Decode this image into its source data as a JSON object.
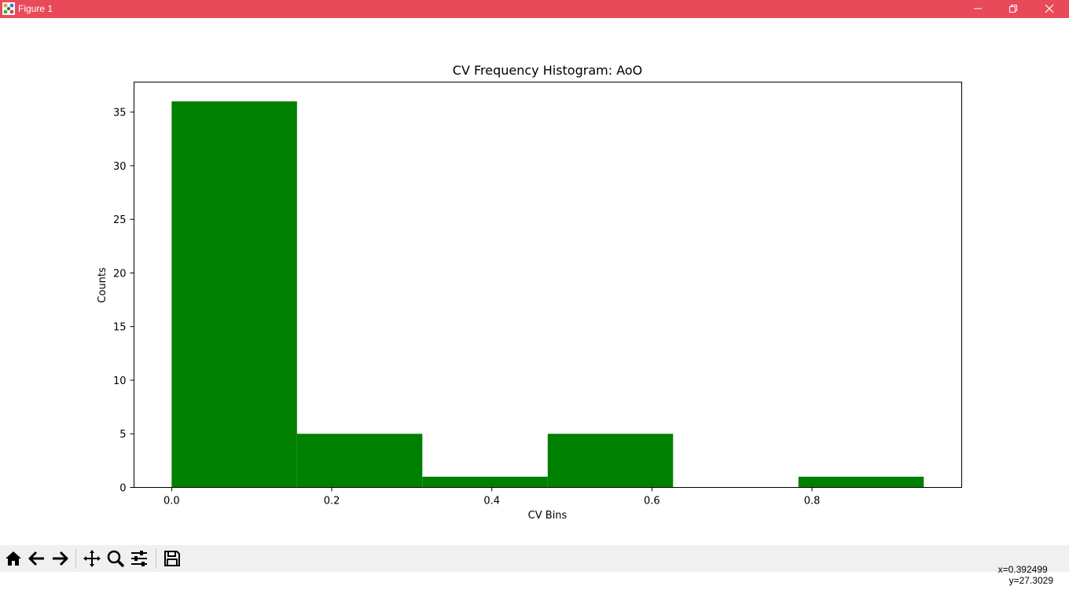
{
  "window": {
    "title": "Figure 1",
    "title_bar_color": "#e84a5a",
    "icons": [
      "app-icon",
      "minimize-icon",
      "restore-icon",
      "close-icon"
    ]
  },
  "toolbar": {
    "buttons": [
      "home-icon",
      "back-icon",
      "forward-icon",
      "pan-icon",
      "zoom-icon",
      "configure-subplots-icon",
      "save-icon"
    ],
    "coord_x": "x=0.392499",
    "coord_y": "y=27.3029"
  },
  "chart_data": {
    "type": "bar",
    "title": "CV Frequency Histogram: AoO",
    "xlabel": "CV Bins",
    "ylabel": "Counts",
    "bin_edges": [
      0.0,
      0.1566,
      0.3132,
      0.4698,
      0.6264,
      0.783,
      0.9396
    ],
    "values": [
      36,
      5,
      1,
      5,
      0,
      1
    ],
    "xticks": [
      0.0,
      0.2,
      0.4,
      0.6,
      0.8
    ],
    "xtick_labels": [
      "0.0",
      "0.2",
      "0.4",
      "0.6",
      "0.8"
    ],
    "yticks": [
      0,
      5,
      10,
      15,
      20,
      25,
      30,
      35
    ],
    "ytick_labels": [
      "0",
      "5",
      "10",
      "15",
      "20",
      "25",
      "30",
      "35"
    ],
    "xlim": [
      -0.047,
      0.987
    ],
    "ylim": [
      0,
      37.8
    ],
    "bar_color": "#008000",
    "grid": false,
    "legend": false
  }
}
